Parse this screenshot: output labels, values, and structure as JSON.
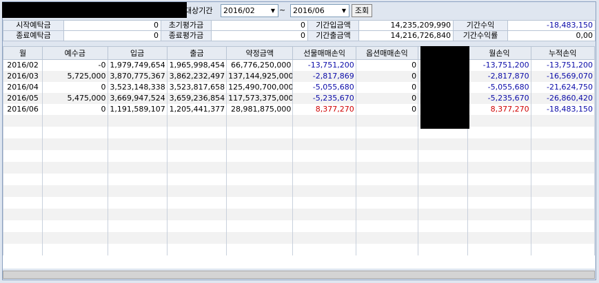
{
  "header": {
    "period_label": "대상기간",
    "start_period": "2016/02",
    "tilde": "~",
    "end_period": "2016/06",
    "query_button": "조회"
  },
  "summary": [
    [
      "시작예탁금",
      "0",
      "초기평가금",
      "0",
      "기간입금액",
      "14,235,209,990",
      "기간수익",
      "-18,483,150"
    ],
    [
      "종료예탁금",
      "0",
      "종료평가금",
      "0",
      "기간출금액",
      "14,216,726,840",
      "기간수익률",
      "0,00"
    ]
  ],
  "grid": {
    "columns": [
      "월",
      "예수금",
      "입금",
      "출금",
      "약정금액",
      "선물매매손익",
      "옵션매매손익",
      "",
      "월손익",
      "누적손익"
    ],
    "rows": [
      [
        "2016/02",
        "-0",
        "1,979,749,654",
        "1,965,998,454",
        "66,776,250,000",
        "-13,751,200",
        "0",
        "",
        "-13,751,200",
        "-13,751,200"
      ],
      [
        "2016/03",
        "5,725,000",
        "3,870,775,367",
        "3,862,232,497",
        "137,144,925,000",
        "-2,817,869",
        "0",
        "",
        "-2,817,870",
        "-16,569,070"
      ],
      [
        "2016/04",
        "0",
        "3,523,148,338",
        "3,523,817,658",
        "125,490,700,000",
        "-5,055,680",
        "0",
        "",
        "-5,055,680",
        "-21,624,750"
      ],
      [
        "2016/05",
        "5,475,000",
        "3,669,947,524",
        "3,659,236,854",
        "117,573,375,000",
        "-5,235,670",
        "0",
        "",
        "-5,235,670",
        "-26,860,420"
      ],
      [
        "2016/06",
        "0",
        "1,191,589,107",
        "1,205,441,377",
        "28,981,875,000",
        "8,377,270",
        "0",
        "",
        "8,377,270",
        "-18,483,150"
      ]
    ]
  },
  "colors": {
    "negative": "#0a0aa8",
    "positive": "#d00000"
  }
}
